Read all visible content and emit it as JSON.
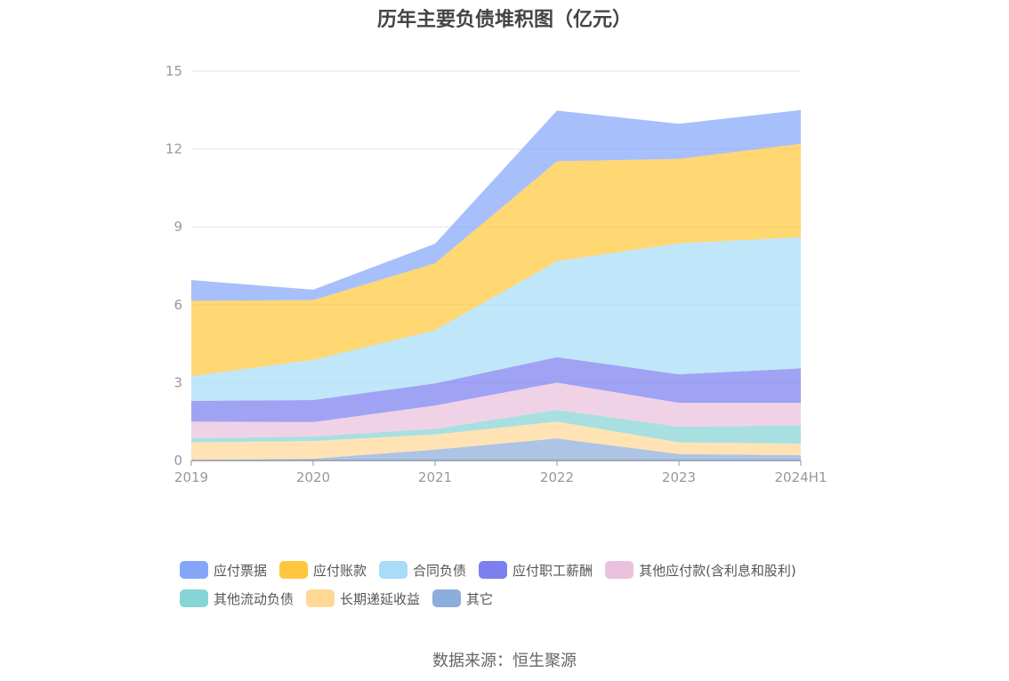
{
  "chart_data": {
    "type": "area",
    "stacked": true,
    "title": "历年主要负债堆积图（亿元）",
    "categories": [
      "2019",
      "2020",
      "2021",
      "2022",
      "2023",
      "2024H1"
    ],
    "ylim": [
      0,
      15
    ],
    "yticks": [
      "0",
      "3",
      "6",
      "9",
      "12",
      "15"
    ],
    "grid": true,
    "legend_position": "bottom",
    "series": [
      {
        "name": "其它",
        "color": "#8dadda",
        "values": [
          0.02,
          0.07,
          0.42,
          0.85,
          0.25,
          0.2
        ]
      },
      {
        "name": "长期递延收益",
        "color": "#ffd898",
        "values": [
          0.68,
          0.68,
          0.58,
          0.65,
          0.45,
          0.45
        ]
      },
      {
        "name": "其他流动负债",
        "color": "#86d4d5",
        "values": [
          0.15,
          0.18,
          0.22,
          0.45,
          0.6,
          0.7
        ]
      },
      {
        "name": "其他应付款(含利息和股利)",
        "color": "#eac1dd",
        "values": [
          0.65,
          0.55,
          0.9,
          1.05,
          0.92,
          0.87
        ]
      },
      {
        "name": "应付职工薪酬",
        "color": "#7b7ff0",
        "values": [
          0.8,
          0.85,
          0.85,
          0.98,
          1.1,
          1.33
        ]
      },
      {
        "name": "合同负债",
        "color": "#a8dcf7",
        "values": [
          0.95,
          1.55,
          2.05,
          3.7,
          5.05,
          5.05
        ]
      },
      {
        "name": "应付账款",
        "color": "#ffc73d",
        "values": [
          2.9,
          2.3,
          2.58,
          3.85,
          3.25,
          3.6
        ]
      },
      {
        "name": "应付票据",
        "color": "#85a6f8",
        "values": [
          0.8,
          0.4,
          0.75,
          1.95,
          1.35,
          1.3
        ]
      }
    ]
  },
  "legend": {
    "items": [
      {
        "label": "应付票据",
        "color": "#85a6f8"
      },
      {
        "label": "应付账款",
        "color": "#ffc73d"
      },
      {
        "label": "合同负债",
        "color": "#a8dcf7"
      },
      {
        "label": "应付职工薪酬",
        "color": "#7b7ff0"
      },
      {
        "label": "其他应付款(含利息和股利)",
        "color": "#eac1dd"
      },
      {
        "label": "其他流动负债",
        "color": "#86d4d5"
      },
      {
        "label": "长期递延收益",
        "color": "#ffd898"
      },
      {
        "label": "其它",
        "color": "#8dadda"
      }
    ]
  },
  "source": "数据来源：恒生聚源"
}
